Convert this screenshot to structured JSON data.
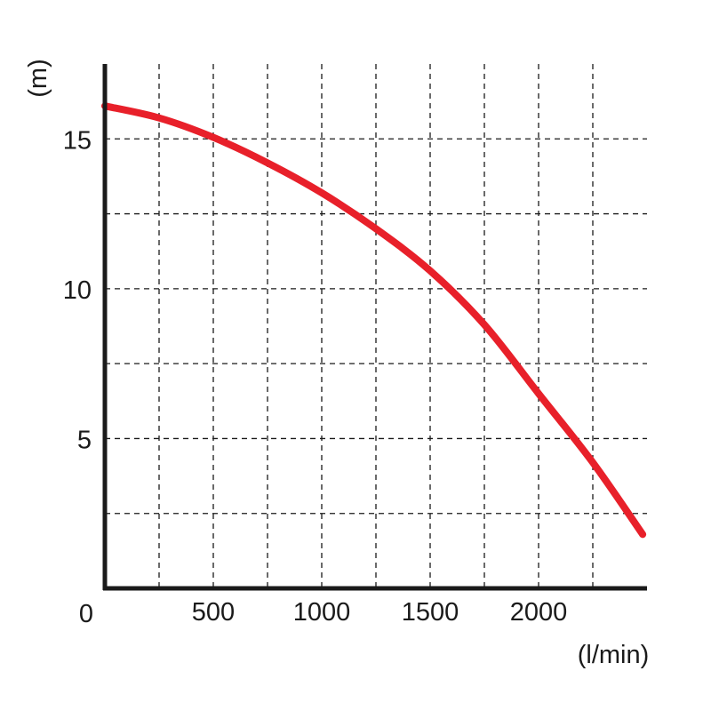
{
  "chart_data": {
    "type": "line",
    "title": "",
    "xlabel": "(l/min)",
    "ylabel": "(m)",
    "origin_label": "0",
    "xlim": [
      0,
      2500
    ],
    "ylim": [
      0,
      17.5
    ],
    "x_grid_step": 250,
    "y_grid_step": 2.5,
    "grid": true,
    "x_ticks": [
      500,
      1000,
      1500,
      2000
    ],
    "x_tick_labels": [
      "500",
      "1000",
      "1500",
      "2000"
    ],
    "y_ticks": [
      5,
      10,
      15
    ],
    "y_tick_labels": [
      "5",
      "10",
      "15"
    ],
    "series": [
      {
        "color": "#e8202a",
        "x": [
          0,
          250,
          500,
          750,
          1000,
          1250,
          1500,
          1750,
          2000,
          2250,
          2480
        ],
        "y": [
          16.1,
          15.7,
          15.05,
          14.2,
          13.2,
          12.0,
          10.6,
          8.8,
          6.5,
          4.2,
          1.8
        ]
      }
    ]
  }
}
